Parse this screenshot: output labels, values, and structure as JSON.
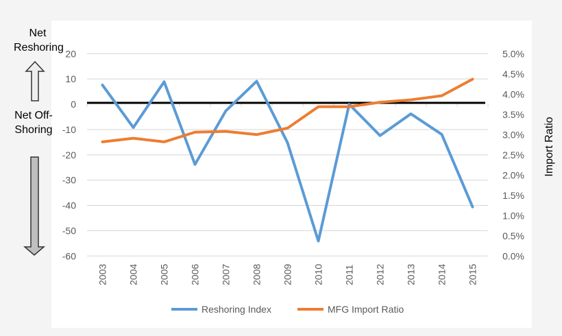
{
  "annotations": {
    "net_reshoring": "Net Reshoring",
    "net_offshoring": "Net Off-Shoring"
  },
  "chart_data": {
    "type": "line",
    "title": "",
    "xlabel": "",
    "ylabel_left": "",
    "ylabel_right": "Import Ratio",
    "categories": [
      "2003",
      "2004",
      "2005",
      "2006",
      "2007",
      "2008",
      "2009",
      "2010",
      "2011",
      "2012",
      "2013",
      "2014",
      "2015"
    ],
    "ylim_left": [
      -60,
      20
    ],
    "yticks_left": [
      "20",
      "10",
      "0",
      "-10",
      "-20",
      "-30",
      "-40",
      "-50",
      "-60"
    ],
    "ylim_right": [
      0,
      5.0
    ],
    "yticks_right": [
      "5.0%",
      "4.5%",
      "4.0%",
      "3.5%",
      "3.0%",
      "2.5%",
      "2.0%",
      "1.5%",
      "1.0%",
      "0.5%",
      "0.0%"
    ],
    "grid": true,
    "legend": "bottom",
    "series": [
      {
        "name": "Reshoring Index",
        "axis": "left",
        "color": "#5b9bd5",
        "values": [
          7.6,
          -9.2,
          8.9,
          -23.8,
          -2.6,
          9.1,
          -15.2,
          -54.1,
          0,
          -12.4,
          -3.8,
          -11.9,
          -40.6
        ]
      },
      {
        "name": "MFG Import Ratio",
        "axis": "right",
        "color": "#ed7d31",
        "values": [
          2.82,
          2.91,
          2.82,
          3.06,
          3.08,
          3.0,
          3.16,
          3.69,
          3.69,
          3.8,
          3.86,
          3.96,
          4.37
        ]
      }
    ],
    "reference_line": {
      "value": 0,
      "color": "#000000"
    }
  }
}
